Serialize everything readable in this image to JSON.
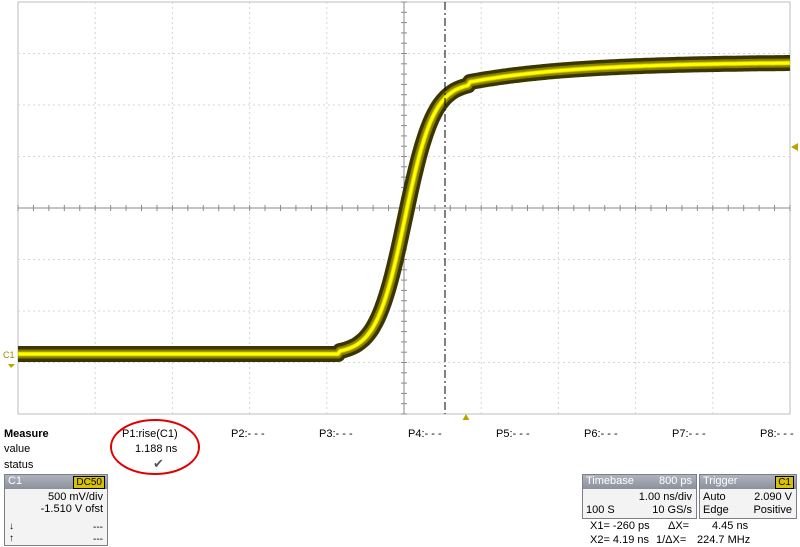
{
  "trace": {
    "channel_marker": "C1",
    "color": "#ffff00",
    "edge_color": "#3a3600"
  },
  "measure": {
    "heading": "Measure",
    "row_labels": [
      "value",
      "status"
    ],
    "params": [
      {
        "name": "P1:rise(C1)",
        "value": "1.188 ns",
        "status": "✔"
      },
      {
        "name": "P2:- - -"
      },
      {
        "name": "P3:- - -"
      },
      {
        "name": "P4:- - -"
      },
      {
        "name": "P5:- - -"
      },
      {
        "name": "P6:- - -"
      },
      {
        "name": "P7:- - -"
      },
      {
        "name": "P8:- - -"
      }
    ],
    "highlight_color": "#e00000"
  },
  "channel": {
    "name": "C1",
    "coupling": "DC50",
    "vdiv": "500 mV/div",
    "offset": "-1.510 V ofst",
    "line3": "---",
    "line4": "---"
  },
  "timebase": {
    "title": "Timebase",
    "delay": "800 ps",
    "tdiv": "1.00 ns/div",
    "samples": "100 S",
    "rate": "10 GS/s"
  },
  "trigger": {
    "title": "Trigger",
    "source": "C1",
    "mode": "Auto",
    "level": "2.090 V",
    "type": "Edge",
    "slope": "Positive"
  },
  "cursors": {
    "x1": "X1=  -260 ps",
    "dx": "ΔX=",
    "dx_val": "4.45 ns",
    "x2": "X2=  4.19 ns",
    "inv_dx": "1/ΔX=",
    "inv_dx_val": "224.7 MHz"
  }
}
